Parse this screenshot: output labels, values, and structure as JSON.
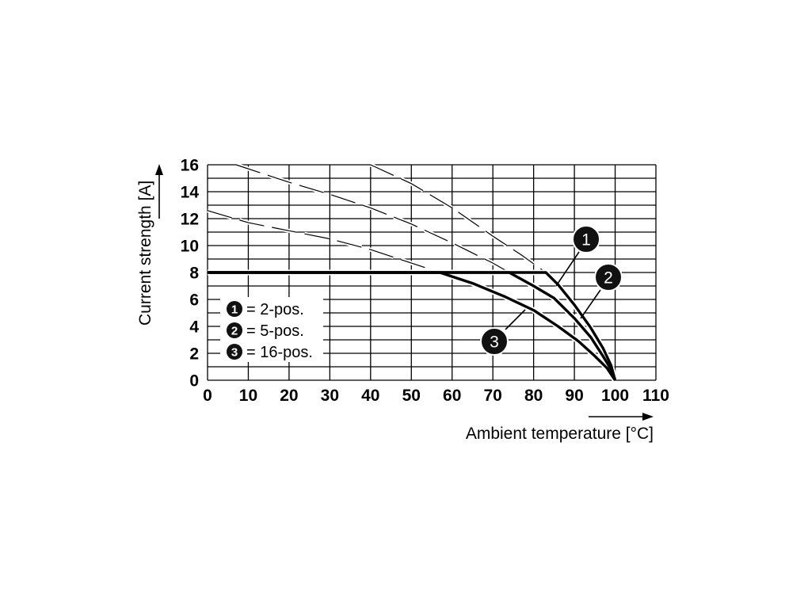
{
  "chart_data": {
    "type": "line",
    "xlabel": "Ambient temperature [°C]",
    "ylabel": "Current strength [A]",
    "xlim": [
      0,
      110
    ],
    "ylim": [
      0,
      16
    ],
    "x_ticks": [
      "0",
      "10",
      "20",
      "30",
      "40",
      "50",
      "60",
      "70",
      "80",
      "90",
      "100",
      "110"
    ],
    "y_ticks": [
      "0",
      "2",
      "4",
      "6",
      "8",
      "10",
      "12",
      "14",
      "16"
    ],
    "grid": true,
    "legend_position": "bottom-left",
    "series": [
      {
        "name": "2-pos.",
        "marker": "1",
        "points": [
          [
            0,
            8
          ],
          [
            83,
            8
          ],
          [
            86,
            7.1
          ],
          [
            90,
            5.6
          ],
          [
            94,
            3.9
          ],
          [
            97,
            2.4
          ],
          [
            99,
            1.1
          ],
          [
            100,
            0
          ]
        ],
        "extrapolation": [
          [
            40,
            16
          ],
          [
            50,
            14.6
          ],
          [
            60,
            12.8
          ],
          [
            70,
            10.7
          ],
          [
            77,
            9.3
          ],
          [
            83,
            8
          ]
        ]
      },
      {
        "name": "5-pos.",
        "marker": "2",
        "points": [
          [
            0,
            8
          ],
          [
            74,
            8
          ],
          [
            80,
            7.0
          ],
          [
            85,
            6.1
          ],
          [
            90,
            4.6
          ],
          [
            94,
            3.2
          ],
          [
            97,
            1.8
          ],
          [
            99,
            0.8
          ],
          [
            100,
            0
          ]
        ],
        "extrapolation": [
          [
            7,
            16
          ],
          [
            20,
            14.7
          ],
          [
            30,
            13.8
          ],
          [
            40,
            12.8
          ],
          [
            50,
            11.6
          ],
          [
            60,
            10.2
          ],
          [
            70,
            8.7
          ],
          [
            74,
            8
          ]
        ]
      },
      {
        "name": "16-pos.",
        "marker": "3",
        "points": [
          [
            0,
            8
          ],
          [
            57,
            8
          ],
          [
            65,
            7.2
          ],
          [
            73,
            6.2
          ],
          [
            80,
            5.2
          ],
          [
            86,
            4.0
          ],
          [
            91,
            2.9
          ],
          [
            95,
            1.8
          ],
          [
            98,
            0.9
          ],
          [
            100,
            0
          ]
        ],
        "extrapolation": [
          [
            0,
            12.6
          ],
          [
            10,
            11.7
          ],
          [
            20,
            11.1
          ],
          [
            30,
            10.5
          ],
          [
            40,
            9.7
          ],
          [
            50,
            8.7
          ],
          [
            57,
            8
          ]
        ]
      }
    ],
    "legend": [
      {
        "marker": "1",
        "label": "= 2-pos."
      },
      {
        "marker": "2",
        "label": "= 5-pos."
      },
      {
        "marker": "3",
        "label": "= 16-pos."
      }
    ],
    "callouts": [
      {
        "marker": "1",
        "target": [
          85,
          7.2
        ]
      },
      {
        "marker": "2",
        "target": [
          91,
          4.6
        ]
      },
      {
        "marker": "3",
        "target": [
          75,
          5.5
        ]
      }
    ],
    "colors": {
      "line": "#000000",
      "grid": "#000000",
      "background": "#ffffff",
      "badge": "#111111"
    }
  }
}
